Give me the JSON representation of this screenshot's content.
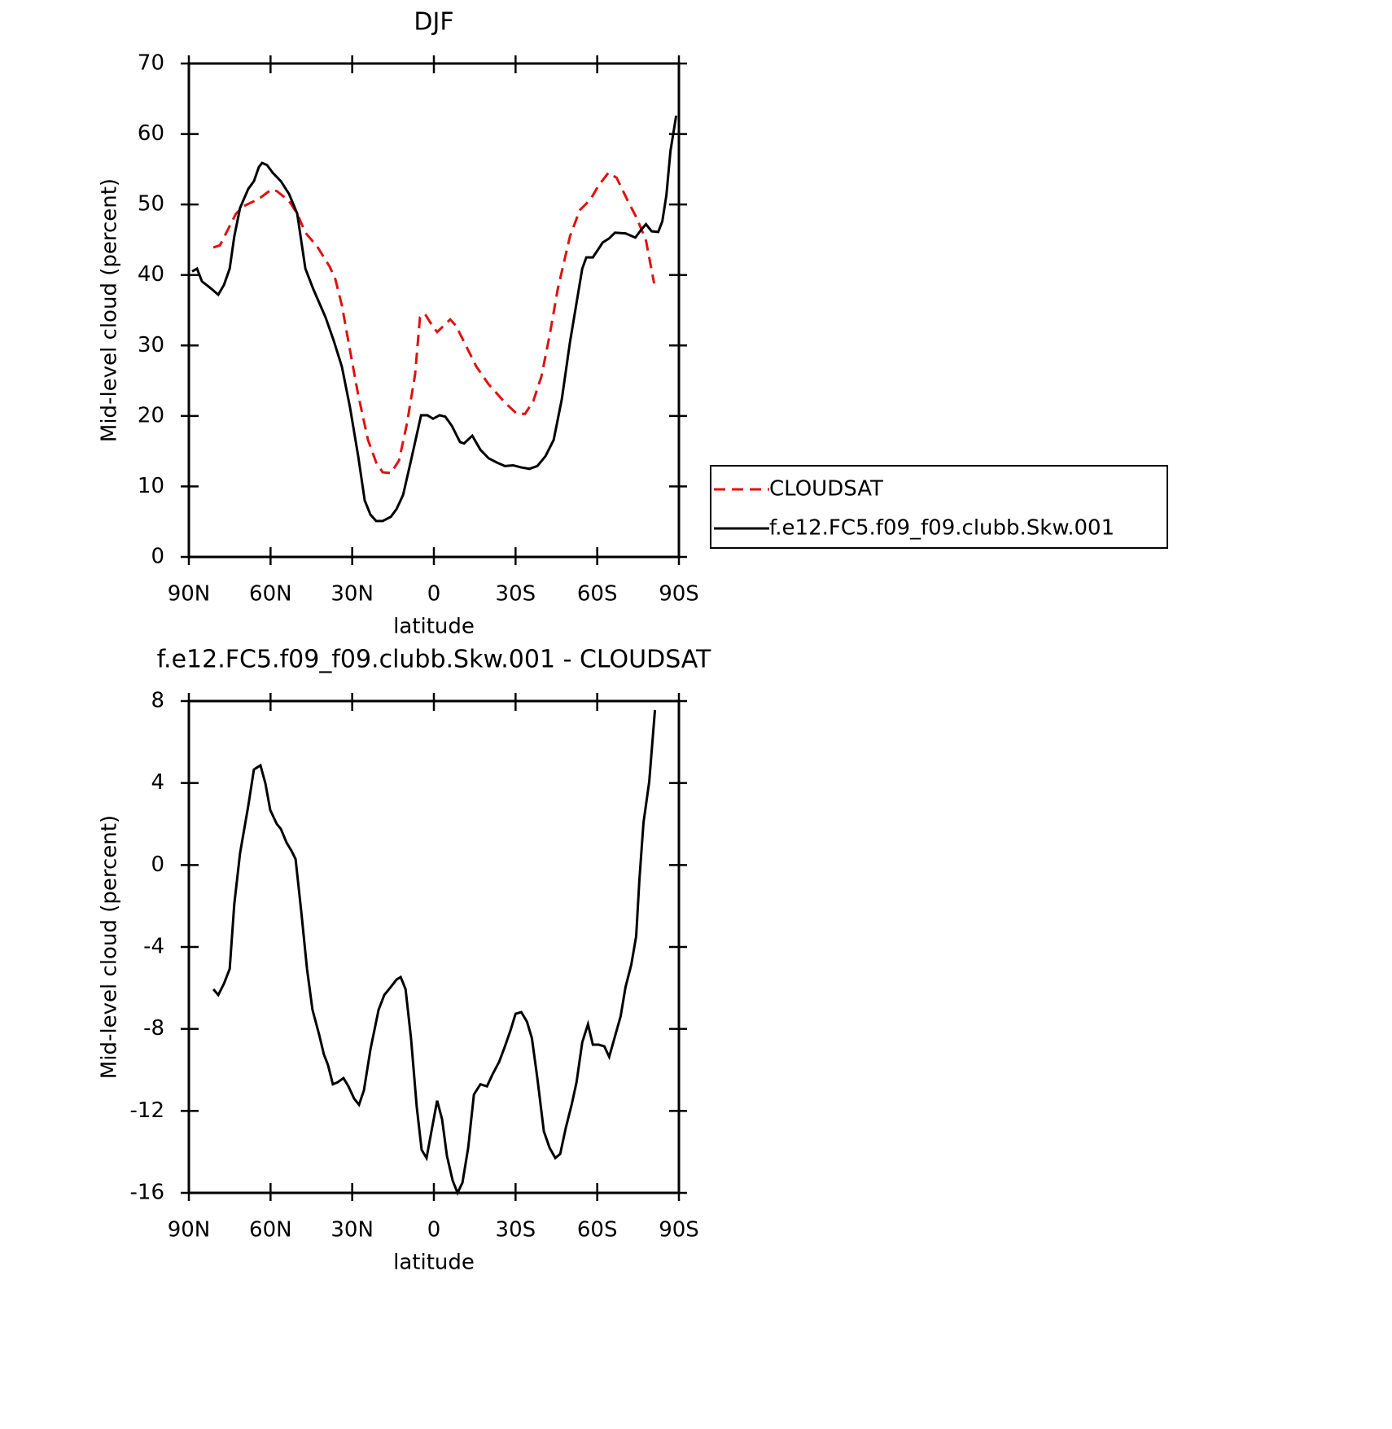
{
  "chart_data": [
    {
      "type": "line",
      "title": "DJF",
      "xlabel": "latitude",
      "ylabel": "Mid-level cloud (percent)",
      "xlim": [
        90,
        -90
      ],
      "xticks": [
        {
          "value": 90,
          "label": "90N"
        },
        {
          "value": 60,
          "label": "60N"
        },
        {
          "value": 30,
          "label": "30N"
        },
        0,
        {
          "value": -30,
          "label": "30S"
        },
        {
          "value": -60,
          "label": "60S"
        },
        {
          "value": -90,
          "label": "90S"
        }
      ],
      "ylim": [
        0,
        70
      ],
      "yticks": [
        0,
        10,
        20,
        30,
        40,
        50,
        60,
        70
      ],
      "legend": true,
      "series": [
        {
          "name": "CLOUDSAT",
          "color": "#e01010",
          "dashed": true,
          "x": [
            81,
            78.6,
            72.7,
            69.7,
            64.3,
            59.8,
            57.7,
            53.2,
            50.2,
            47.2,
            42.8,
            38.3,
            36.2,
            33.8,
            30.8,
            27.8,
            24.2,
            21.2,
            18.8,
            15.8,
            12.8,
            9.9,
            6.9,
            5.1,
            3.3,
            0.9,
            -1.2,
            -3.6,
            -6.0,
            -8.1,
            -11.1,
            -15.6,
            -20.1,
            -26.1,
            -30.5,
            -33.5,
            -36.5,
            -39.5,
            -42.5,
            -45.5,
            -50.0,
            -53.6,
            -57.5,
            -60.5,
            -64.1,
            -67.1,
            -71.0,
            -74.6,
            -77.9,
            -80.9
          ],
          "values": [
            43.9,
            44.2,
            48.7,
            49.8,
            50.8,
            52.1,
            51.9,
            50.5,
            48.7,
            46.0,
            44.0,
            41.2,
            39.4,
            35.7,
            29.3,
            23.0,
            16.6,
            13.4,
            12.0,
            11.9,
            13.7,
            18.9,
            25.9,
            34.0,
            34.5,
            33.0,
            31.9,
            32.8,
            33.7,
            32.8,
            30.5,
            27.0,
            24.5,
            21.9,
            20.3,
            20.3,
            22.1,
            25.6,
            31.4,
            38.0,
            45.5,
            49.2,
            50.7,
            52.7,
            54.5,
            53.8,
            50.7,
            48.0,
            44.9,
            38.8
          ]
        },
        {
          "name": "f.e12.FC5.f09_f09.clubb.Skw.001",
          "color": "#000000",
          "dashed": false,
          "x": [
            88.8,
            87,
            85.2,
            81.6,
            79.2,
            77.1,
            75.0,
            73.3,
            71.2,
            68.2,
            66.1,
            64.3,
            63.1,
            61.3,
            59.2,
            56.2,
            53.2,
            50.2,
            47.2,
            44.3,
            39.8,
            36.8,
            33.8,
            30.8,
            27.8,
            25.4,
            23.3,
            21.2,
            18.8,
            15.8,
            13.7,
            11.3,
            8.4,
            4.7,
            2.4,
            0.3,
            -2.1,
            -4.2,
            -6.6,
            -9.6,
            -11.1,
            -14.1,
            -17.1,
            -20.1,
            -23.1,
            -26.1,
            -29.1,
            -32.1,
            -35.1,
            -38.0,
            -41.0,
            -44.0,
            -47.0,
            -50.0,
            -54.5,
            -56.0,
            -58.4,
            -62.0,
            -64.4,
            -66.5,
            -70.4,
            -74.0,
            -76.1,
            -77.9,
            -80.0,
            -82.4,
            -83.9,
            -85.4,
            -86.9,
            -89.0
          ],
          "values": [
            40.5,
            40.9,
            39.1,
            38.0,
            37.2,
            38.6,
            40.9,
            45.5,
            49.5,
            52.2,
            53.3,
            55.3,
            55.9,
            55.6,
            54.5,
            53.3,
            51.5,
            48.7,
            40.9,
            38.0,
            34.0,
            30.7,
            27.0,
            21.2,
            14.3,
            8.0,
            6.0,
            5.1,
            5.1,
            5.7,
            6.8,
            8.8,
            13.7,
            20.1,
            20.1,
            19.6,
            20.1,
            19.9,
            18.6,
            16.3,
            16.1,
            17.2,
            15.2,
            14.0,
            13.4,
            12.9,
            13.0,
            12.7,
            12.5,
            12.9,
            14.3,
            16.6,
            22.4,
            30.5,
            40.9,
            42.5,
            42.5,
            44.6,
            45.2,
            46.0,
            45.9,
            45.3,
            46.4,
            47.2,
            46.2,
            46.1,
            47.6,
            51.3,
            57.6,
            62.6
          ]
        }
      ]
    },
    {
      "type": "line",
      "title": "f.e12.FC5.f09_f09.clubb.Skw.001 - CLOUDSAT",
      "xlabel": "latitude",
      "ylabel": "Mid-level cloud (percent)",
      "xlim": [
        90,
        -90
      ],
      "xticks": [
        {
          "value": 90,
          "label": "90N"
        },
        {
          "value": 60,
          "label": "60N"
        },
        {
          "value": 30,
          "label": "30N"
        },
        0,
        {
          "value": -30,
          "label": "30S"
        },
        {
          "value": -60,
          "label": "60S"
        },
        {
          "value": -90,
          "label": "90S"
        }
      ],
      "ylim": [
        -16,
        8
      ],
      "yticks": [
        -16,
        -12,
        -8,
        -4,
        0,
        4,
        8
      ],
      "legend": false,
      "series": [
        {
          "color": "#000000",
          "dashed": false,
          "x": [
            81,
            79.2,
            77.1,
            75.0,
            73.3,
            71.2,
            68.2,
            66.1,
            63.7,
            61.9,
            60.1,
            57.7,
            56.2,
            54.1,
            52.3,
            50.8,
            48.7,
            46.6,
            44.6,
            42.2,
            40.4,
            38.9,
            37.1,
            35.3,
            33.2,
            31.4,
            29.3,
            27.5,
            25.7,
            23.3,
            20.3,
            18.2,
            15.8,
            13.7,
            12.2,
            10.4,
            8.4,
            6.3,
            4.5,
            2.7,
            0.9,
            -1.2,
            -3.0,
            -4.8,
            -6.9,
            -8.7,
            -10.5,
            -12.6,
            -14.7,
            -17.1,
            -19.5,
            -21.6,
            -24.0,
            -26.1,
            -28.2,
            -30.0,
            -32.1,
            -34.2,
            -36.0,
            -38.0,
            -40.4,
            -42.5,
            -44.6,
            -46.4,
            -48.5,
            -50.6,
            -52.4,
            -54.5,
            -56.6,
            -58.4,
            -60.5,
            -62.6,
            -64.4,
            -66.5,
            -68.6,
            -70.4,
            -72.5,
            -74.3,
            -75.5,
            -77.0,
            -79.1,
            -81.2
          ],
          "values": [
            -6.06,
            -6.34,
            -5.79,
            -5.07,
            -1.89,
            0.57,
            2.87,
            4.66,
            4.86,
            3.99,
            2.68,
            2.0,
            1.76,
            1.09,
            0.69,
            0.29,
            -2.29,
            -5.07,
            -7.06,
            -8.25,
            -9.24,
            -9.76,
            -10.7,
            -10.6,
            -10.4,
            -10.8,
            -11.4,
            -11.7,
            -11.0,
            -9.0,
            -7.06,
            -6.34,
            -5.95,
            -5.59,
            -5.47,
            -6.06,
            -8.45,
            -11.8,
            -13.9,
            -14.3,
            -13.0,
            -11.5,
            -12.4,
            -14.2,
            -15.4,
            -16.0,
            -15.5,
            -13.8,
            -11.2,
            -10.7,
            -10.8,
            -10.2,
            -9.6,
            -8.85,
            -8.05,
            -7.26,
            -7.18,
            -7.65,
            -8.45,
            -10.4,
            -13.0,
            -13.8,
            -14.3,
            -14.1,
            -12.8,
            -11.7,
            -10.6,
            -8.65,
            -7.77,
            -8.77,
            -8.77,
            -8.85,
            -9.36,
            -8.37,
            -7.38,
            -5.95,
            -4.87,
            -3.48,
            -0.7,
            2.08,
            4.07,
            7.56
          ]
        }
      ]
    }
  ]
}
